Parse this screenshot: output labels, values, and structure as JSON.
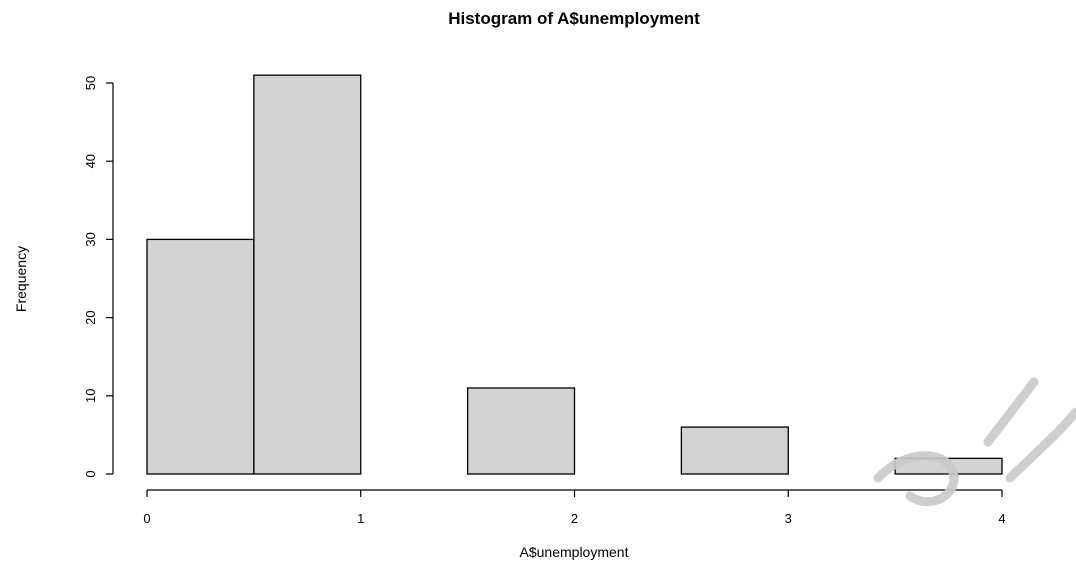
{
  "chart_data": {
    "type": "bar",
    "title": "Histogram of A$unemployment",
    "xlabel": "A$unemployment",
    "ylabel": "Frequency",
    "bins": [
      {
        "from": 0.0,
        "to": 0.5,
        "count": 30
      },
      {
        "from": 0.5,
        "to": 1.0,
        "count": 51
      },
      {
        "from": 1.0,
        "to": 1.5,
        "count": 0
      },
      {
        "from": 1.5,
        "to": 2.0,
        "count": 11
      },
      {
        "from": 2.0,
        "to": 2.5,
        "count": 0
      },
      {
        "from": 2.5,
        "to": 3.0,
        "count": 6
      },
      {
        "from": 3.0,
        "to": 3.5,
        "count": 0
      },
      {
        "from": 3.5,
        "to": 4.0,
        "count": 2
      }
    ],
    "xlim": [
      0,
      4
    ],
    "ylim": [
      0,
      50
    ],
    "x_ticks": [
      0,
      1,
      2,
      3,
      4
    ],
    "y_ticks": [
      0,
      10,
      20,
      30,
      40,
      50
    ],
    "colors": {
      "bar_fill": "#d3d3d3",
      "bar_stroke": "#000000"
    },
    "grid": false,
    "legend": "none"
  }
}
